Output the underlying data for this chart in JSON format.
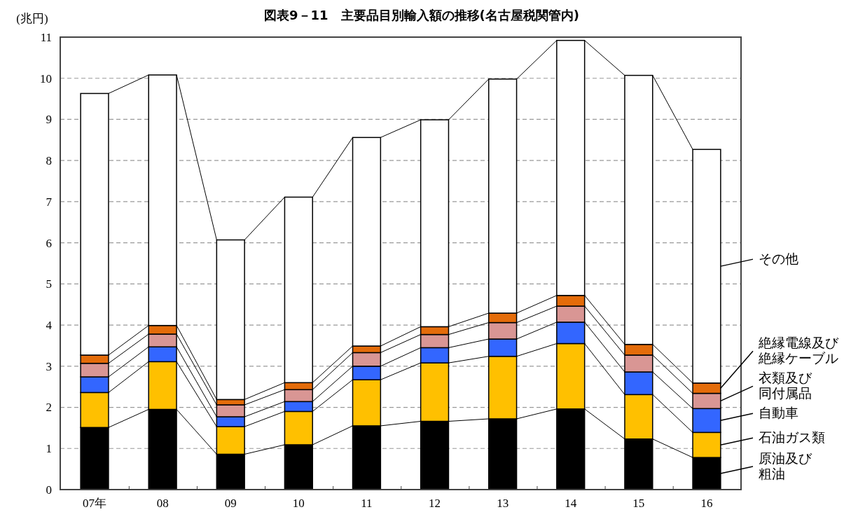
{
  "chart_data": {
    "type": "bar",
    "stacked": true,
    "title": "図表9－11　主要品目別輸入額の推移(名古屋税関管内)",
    "ylabel": "(兆円)",
    "categories": [
      "07年",
      "08",
      "09",
      "10",
      "11",
      "12",
      "13",
      "14",
      "15",
      "16"
    ],
    "series": [
      {
        "name": "原油及び粗油",
        "color": "#000000",
        "values": [
          1.51,
          1.95,
          0.86,
          1.09,
          1.55,
          1.66,
          1.72,
          1.96,
          1.23,
          0.78
        ]
      },
      {
        "name": "石油ガス類",
        "color": "#ffc000",
        "values": [
          0.85,
          1.16,
          0.67,
          0.81,
          1.12,
          1.42,
          1.52,
          1.59,
          1.08,
          0.61
        ]
      },
      {
        "name": "自動車",
        "color": "#3366ff",
        "values": [
          0.38,
          0.36,
          0.24,
          0.24,
          0.33,
          0.37,
          0.42,
          0.52,
          0.55,
          0.58
        ]
      },
      {
        "name": "衣類及び同付属品",
        "color": "#d99694",
        "values": [
          0.33,
          0.31,
          0.29,
          0.29,
          0.33,
          0.32,
          0.4,
          0.39,
          0.41,
          0.37
        ]
      },
      {
        "name": "絶縁電線及び絶縁ケーブル",
        "color": "#e46c0a",
        "values": [
          0.2,
          0.21,
          0.13,
          0.17,
          0.16,
          0.19,
          0.23,
          0.26,
          0.26,
          0.25
        ]
      },
      {
        "name": "その他",
        "color": "#ffffff",
        "values": [
          6.36,
          6.09,
          3.88,
          4.51,
          5.07,
          5.03,
          5.69,
          6.2,
          6.54,
          5.68
        ]
      }
    ],
    "ylim": [
      0,
      11
    ],
    "yticks": [
      0,
      1,
      2,
      3,
      4,
      5,
      6,
      7,
      8,
      9,
      10,
      11
    ],
    "grid": "y",
    "legend": "right"
  }
}
